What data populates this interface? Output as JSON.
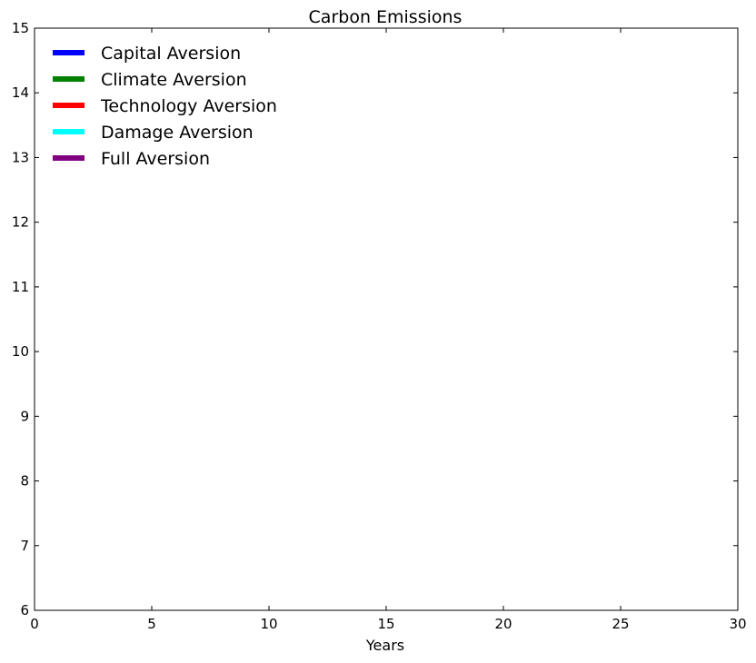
{
  "chart_data": {
    "type": "line",
    "title": "Carbon Emissions",
    "xlabel": "Years",
    "ylabel": "",
    "xlim": [
      0,
      30
    ],
    "ylim": [
      6,
      15
    ],
    "xticks": [
      0,
      5,
      10,
      15,
      20,
      25,
      30
    ],
    "yticks": [
      6,
      7,
      8,
      9,
      10,
      11,
      12,
      13,
      14,
      15
    ],
    "grid": false,
    "legend_position": "top-left",
    "series": [
      {
        "name": "Capital Aversion",
        "color": "#0000ff",
        "x": [],
        "y": []
      },
      {
        "name": "Climate Aversion",
        "color": "#008000",
        "x": [],
        "y": []
      },
      {
        "name": "Technology Aversion",
        "color": "#ff0000",
        "x": [],
        "y": []
      },
      {
        "name": "Damage Aversion",
        "color": "#00ffff",
        "x": [],
        "y": []
      },
      {
        "name": "Full Aversion",
        "color": "#800080",
        "x": [],
        "y": []
      }
    ]
  }
}
